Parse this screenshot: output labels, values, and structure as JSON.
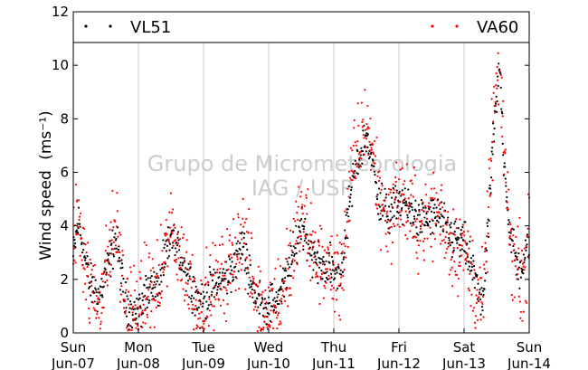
{
  "chart_data": {
    "type": "scatter",
    "title": "",
    "ylabel": "Wind speed",
    "ylabel_unit": "(ms⁻¹)",
    "xlabel": "",
    "ylim": [
      0,
      12
    ],
    "yticks": [
      "0",
      "2",
      "4",
      "6",
      "8",
      "10",
      "12"
    ],
    "xlim_days": [
      0,
      7
    ],
    "xticks": [
      {
        "day": 0,
        "line1": "Sun",
        "line2": "Jun-07"
      },
      {
        "day": 1,
        "line1": "Mon",
        "line2": "Jun-08"
      },
      {
        "day": 2,
        "line1": "Tue",
        "line2": "Jun-09"
      },
      {
        "day": 3,
        "line1": "Wed",
        "line2": "Jun-10"
      },
      {
        "day": 4,
        "line1": "Thu",
        "line2": "Jun-11"
      },
      {
        "day": 5,
        "line1": "Fri",
        "line2": "Jun-12"
      },
      {
        "day": 6,
        "line1": "Sat",
        "line2": "Jun-13"
      },
      {
        "day": 7,
        "line1": "Sun",
        "line2": "Jun-14"
      }
    ],
    "grid": "vertical",
    "legend_placement": "top",
    "watermark": [
      "Grupo de Micrometeorologia",
      "IAG / USP"
    ],
    "series": [
      {
        "name": "VL51",
        "color": "#000000",
        "profile": {
          "x": [
            0,
            0.08,
            0.25,
            0.4,
            0.55,
            0.65,
            0.8,
            1.0,
            1.15,
            1.3,
            1.5,
            1.7,
            1.95,
            2.15,
            2.4,
            2.6,
            2.8,
            3.0,
            3.2,
            3.4,
            3.5,
            3.7,
            3.95,
            4.1,
            4.3,
            4.5,
            4.62,
            4.72,
            4.85,
            5.0,
            5.3,
            5.6,
            5.8,
            6.0,
            6.2,
            6.3,
            6.45,
            6.55,
            6.6,
            6.7,
            6.8,
            6.9,
            7.0
          ],
          "y": [
            2.8,
            4.2,
            1.8,
            1.4,
            2.6,
            3.6,
            1.1,
            0.7,
            1.8,
            1.6,
            3.6,
            2.6,
            1.0,
            1.7,
            2.2,
            3.3,
            1.3,
            0.9,
            1.6,
            3.0,
            4.2,
            2.7,
            2.4,
            2.2,
            5.8,
            7.4,
            6.0,
            4.8,
            4.4,
            5.0,
            4.2,
            4.4,
            3.6,
            3.3,
            1.8,
            1.1,
            7.2,
            10.0,
            7.0,
            3.8,
            2.6,
            2.4,
            3.4
          ]
        },
        "spread": 0.55
      },
      {
        "name": "VA60",
        "color": "#ff0000",
        "profile": {
          "x": [
            0,
            0.08,
            0.25,
            0.4,
            0.55,
            0.65,
            0.8,
            1.0,
            1.15,
            1.3,
            1.5,
            1.7,
            1.95,
            2.15,
            2.4,
            2.6,
            2.8,
            3.0,
            3.2,
            3.4,
            3.5,
            3.7,
            3.95,
            4.1,
            4.3,
            4.5,
            4.62,
            4.72,
            4.85,
            5.0,
            5.3,
            5.6,
            5.8,
            6.0,
            6.2,
            6.3,
            6.45,
            6.55,
            6.6,
            6.7,
            6.8,
            6.9,
            7.0
          ],
          "y": [
            3.0,
            4.6,
            1.6,
            1.2,
            2.9,
            4.2,
            1.0,
            0.6,
            1.7,
            1.5,
            3.9,
            2.5,
            0.9,
            1.6,
            2.4,
            3.8,
            1.4,
            0.8,
            1.5,
            3.2,
            4.4,
            2.9,
            2.3,
            2.0,
            6.2,
            8.0,
            6.4,
            5.0,
            4.2,
            5.2,
            4.0,
            4.6,
            3.4,
            3.1,
            1.5,
            1.2,
            8.0,
            10.2,
            7.6,
            3.6,
            2.6,
            2.2,
            3.5
          ]
        },
        "spread": 1.15
      }
    ]
  }
}
